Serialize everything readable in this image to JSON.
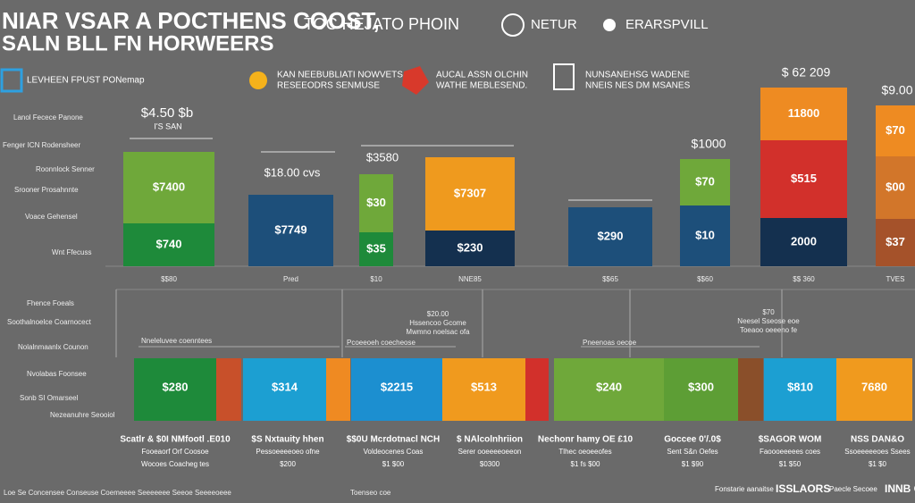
{
  "header": {
    "title_line1": "NIAR VSAR A POCTHENS COOST,",
    "title_line2": "SALN BLL FN HORWEERS",
    "center": "TOC HEJATO PHOIN",
    "nav": [
      "NETUR",
      "ERARSPVILL"
    ]
  },
  "legend": [
    [
      "LEVHEEN FPUST PONemap"
    ],
    [
      "KAN NEEBUBLIATI NOWVETS",
      "RESEEODRS SENMUSE"
    ],
    [
      "AUCAL ASSN OLCHIN",
      "WATHE MEBLESEND."
    ],
    [
      "NUNSANEHSG WADENE",
      "NNEIS NES DM MSANES"
    ]
  ],
  "top_left_labels": [
    "Lanol Fecece Panone",
    "Fenger ICN Rodensheer",
    "Roonnlock Senner",
    "Srooner Prosahnnte",
    "Voace Gehensel",
    "Wnt Ffecuss"
  ],
  "top_bars": [
    {
      "above": [
        "$4.50 $b",
        "I'S SAN"
      ],
      "segments": [
        "$7400",
        "$740"
      ],
      "xlabel": "$$80"
    },
    {
      "above": [
        "$18.00 cvs"
      ],
      "segments": [
        "$7749"
      ],
      "xlabel": "Pred"
    },
    {
      "above": [
        "$3580"
      ],
      "segments": [
        "$30",
        "$35"
      ],
      "xlabel": "$10"
    },
    {
      "above": [],
      "segments": [
        "$7307",
        "$230"
      ],
      "xlabel": "NNE85"
    },
    {
      "above": [],
      "segments": [
        "$290"
      ],
      "xlabel": "$$65"
    },
    {
      "above": [
        "$1000"
      ],
      "segments": [
        "$70",
        "$10"
      ],
      "xlabel": "$$60"
    },
    {
      "above": [
        "$ 62 209"
      ],
      "segments": [
        "11800",
        "$515",
        "2000"
      ],
      "xlabel": "$$ 360"
    },
    {
      "above": [
        "$9.00"
      ],
      "segments": [
        "$70",
        "$00",
        "$37"
      ],
      "xlabel": "TVES"
    }
  ],
  "bottom_left_labels": [
    "Fhence Foeals",
    "Soothalnoelce Coarnocect",
    "Nolalnmaanlx Counon",
    "Nvolabas Foonsee",
    "Sonb SI Omarseel",
    "Nezeanuhre Seooiol"
  ],
  "annotations": [
    [
      "Nneleluvee coenntees"
    ],
    [
      "Pcoeeoeh coecheose"
    ],
    [
      "$20.00",
      "Hssencoo Gcome",
      "Mwmno noelsac ofa"
    ],
    [
      "Pneenoas oecoe"
    ],
    [
      "$70",
      "Neesel Sseose eoe",
      "Toeaoo oeeeno fe"
    ]
  ],
  "bottom_strip": [
    "$280",
    "",
    "$314",
    "",
    "$2215",
    "$513",
    "",
    "$240",
    "$300",
    "",
    "$810",
    "7680"
  ],
  "bottom_captions": [
    [
      "Scatlr & $0I NMfootl .E010",
      "Fooeaorf Orf Coosoe",
      "Wocoes Coacheg tes"
    ],
    [
      "$S Nxtauity hhen",
      "Pessoeeeeoeo ofne",
      "$200"
    ],
    [
      "$$0U Mcrdotnacl NCH",
      "Voldeocenes Coas",
      "$1 $00"
    ],
    [
      "$ NAlcolnhriion",
      "Serer ooeeeeoeeon",
      "$0300"
    ],
    [
      "Nechonr hamy OE £10",
      "Tlhec oeoeeofes",
      "$1 fs $00"
    ],
    [
      "Goccee 0'/.0$",
      "Sent S&n Oefes",
      "$1 $90"
    ],
    [
      "$SAGOR WOM",
      "Faoooeeeees coes",
      "$1 $50"
    ],
    [
      "NSS DAN&O",
      "Ssoeeeeeoes Ssees",
      "$1 $0"
    ]
  ],
  "footer_left": "Loe Se Concensee Conseuse Coemeeee Seeeeeee Seeoe Seeeeoeee",
  "footer_mid": "Toenseo coe",
  "footer_right": [
    "Fonstarie aanaitse",
    "ISSLAORS",
    "Paecle Secoee",
    "INNB O"
  ]
}
